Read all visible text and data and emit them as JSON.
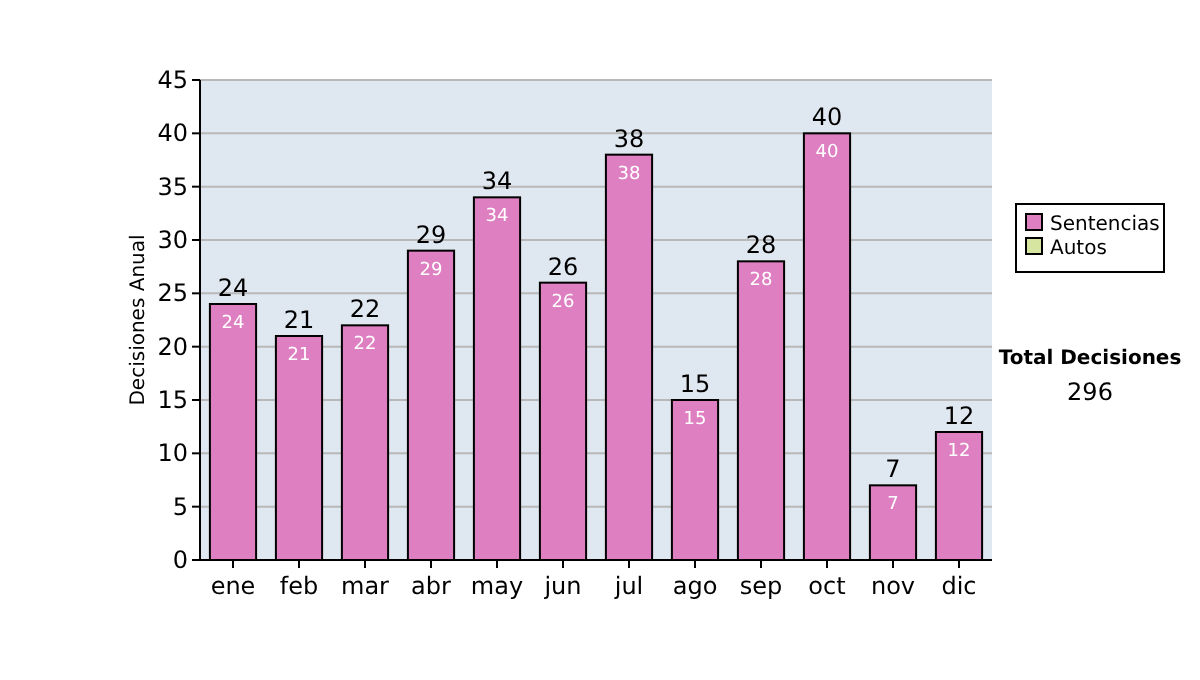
{
  "chart_data": {
    "type": "bar",
    "ylabel": "Decisiones Anual",
    "categories": [
      "ene",
      "feb",
      "mar",
      "abr",
      "may",
      "jun",
      "jul",
      "ago",
      "sep",
      "oct",
      "nov",
      "dic"
    ],
    "series": [
      {
        "name": "Sentencias",
        "color": "#de7fc2",
        "values": [
          24,
          21,
          22,
          29,
          34,
          26,
          38,
          15,
          28,
          40,
          7,
          12
        ],
        "value_labels": [
          "24",
          "21",
          "22",
          "29",
          "34",
          "26",
          "38",
          "15",
          "28",
          "40",
          "7",
          "12"
        ]
      },
      {
        "name": "Autos",
        "color": "#d6e6a0",
        "values": [
          0,
          0,
          0,
          0,
          0,
          0,
          0,
          0,
          0,
          0,
          0,
          0
        ],
        "value_labels": [
          null,
          null,
          null,
          null,
          null,
          null,
          null,
          null,
          null,
          null,
          null,
          null
        ]
      }
    ],
    "stacked": true,
    "totals": [
      "24",
      "21",
      "22",
      "29",
      "34",
      "26",
      "38",
      "15",
      "28",
      "40",
      "7",
      "12"
    ],
    "ylim": [
      0,
      45
    ],
    "yticks": [
      0,
      5,
      10,
      15,
      20,
      25,
      30,
      35,
      40,
      45
    ],
    "grid": "y",
    "legend": "right",
    "annotations": [
      "Total Decisiones",
      "296"
    ]
  }
}
